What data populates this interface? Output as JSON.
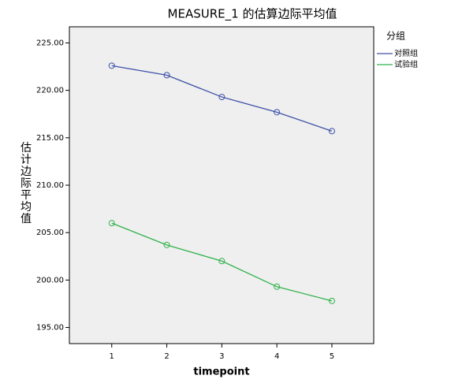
{
  "chart_data": {
    "type": "line",
    "title": "MEASURE_1 的估算边际平均值",
    "x_label": "timepoint",
    "y_label": "估计边际平均值",
    "x": [
      1,
      2,
      3,
      4,
      5
    ],
    "xlim": [
      0.23,
      5.76
    ],
    "xticks": [
      1,
      2,
      3,
      4,
      5
    ],
    "ylim": [
      193.3,
      226.7
    ],
    "yticks": [
      {
        "value": 195,
        "label": "195.00"
      },
      {
        "value": 200,
        "label": "200.00"
      },
      {
        "value": 205,
        "label": "205.00"
      },
      {
        "value": 210,
        "label": "210.00"
      },
      {
        "value": 215,
        "label": "215.00"
      },
      {
        "value": 220,
        "label": "220.00"
      },
      {
        "value": 225,
        "label": "225.00"
      }
    ],
    "legend_title": "分组",
    "legend_position": "right",
    "series": [
      {
        "name": "对照组",
        "color": "#3f51a8",
        "values": [
          222.6,
          221.6,
          219.3,
          217.7,
          215.7
        ]
      },
      {
        "name": "试验组",
        "color": "#2fb24a",
        "values": [
          206.0,
          203.7,
          202.0,
          199.3,
          197.8
        ]
      }
    ]
  }
}
